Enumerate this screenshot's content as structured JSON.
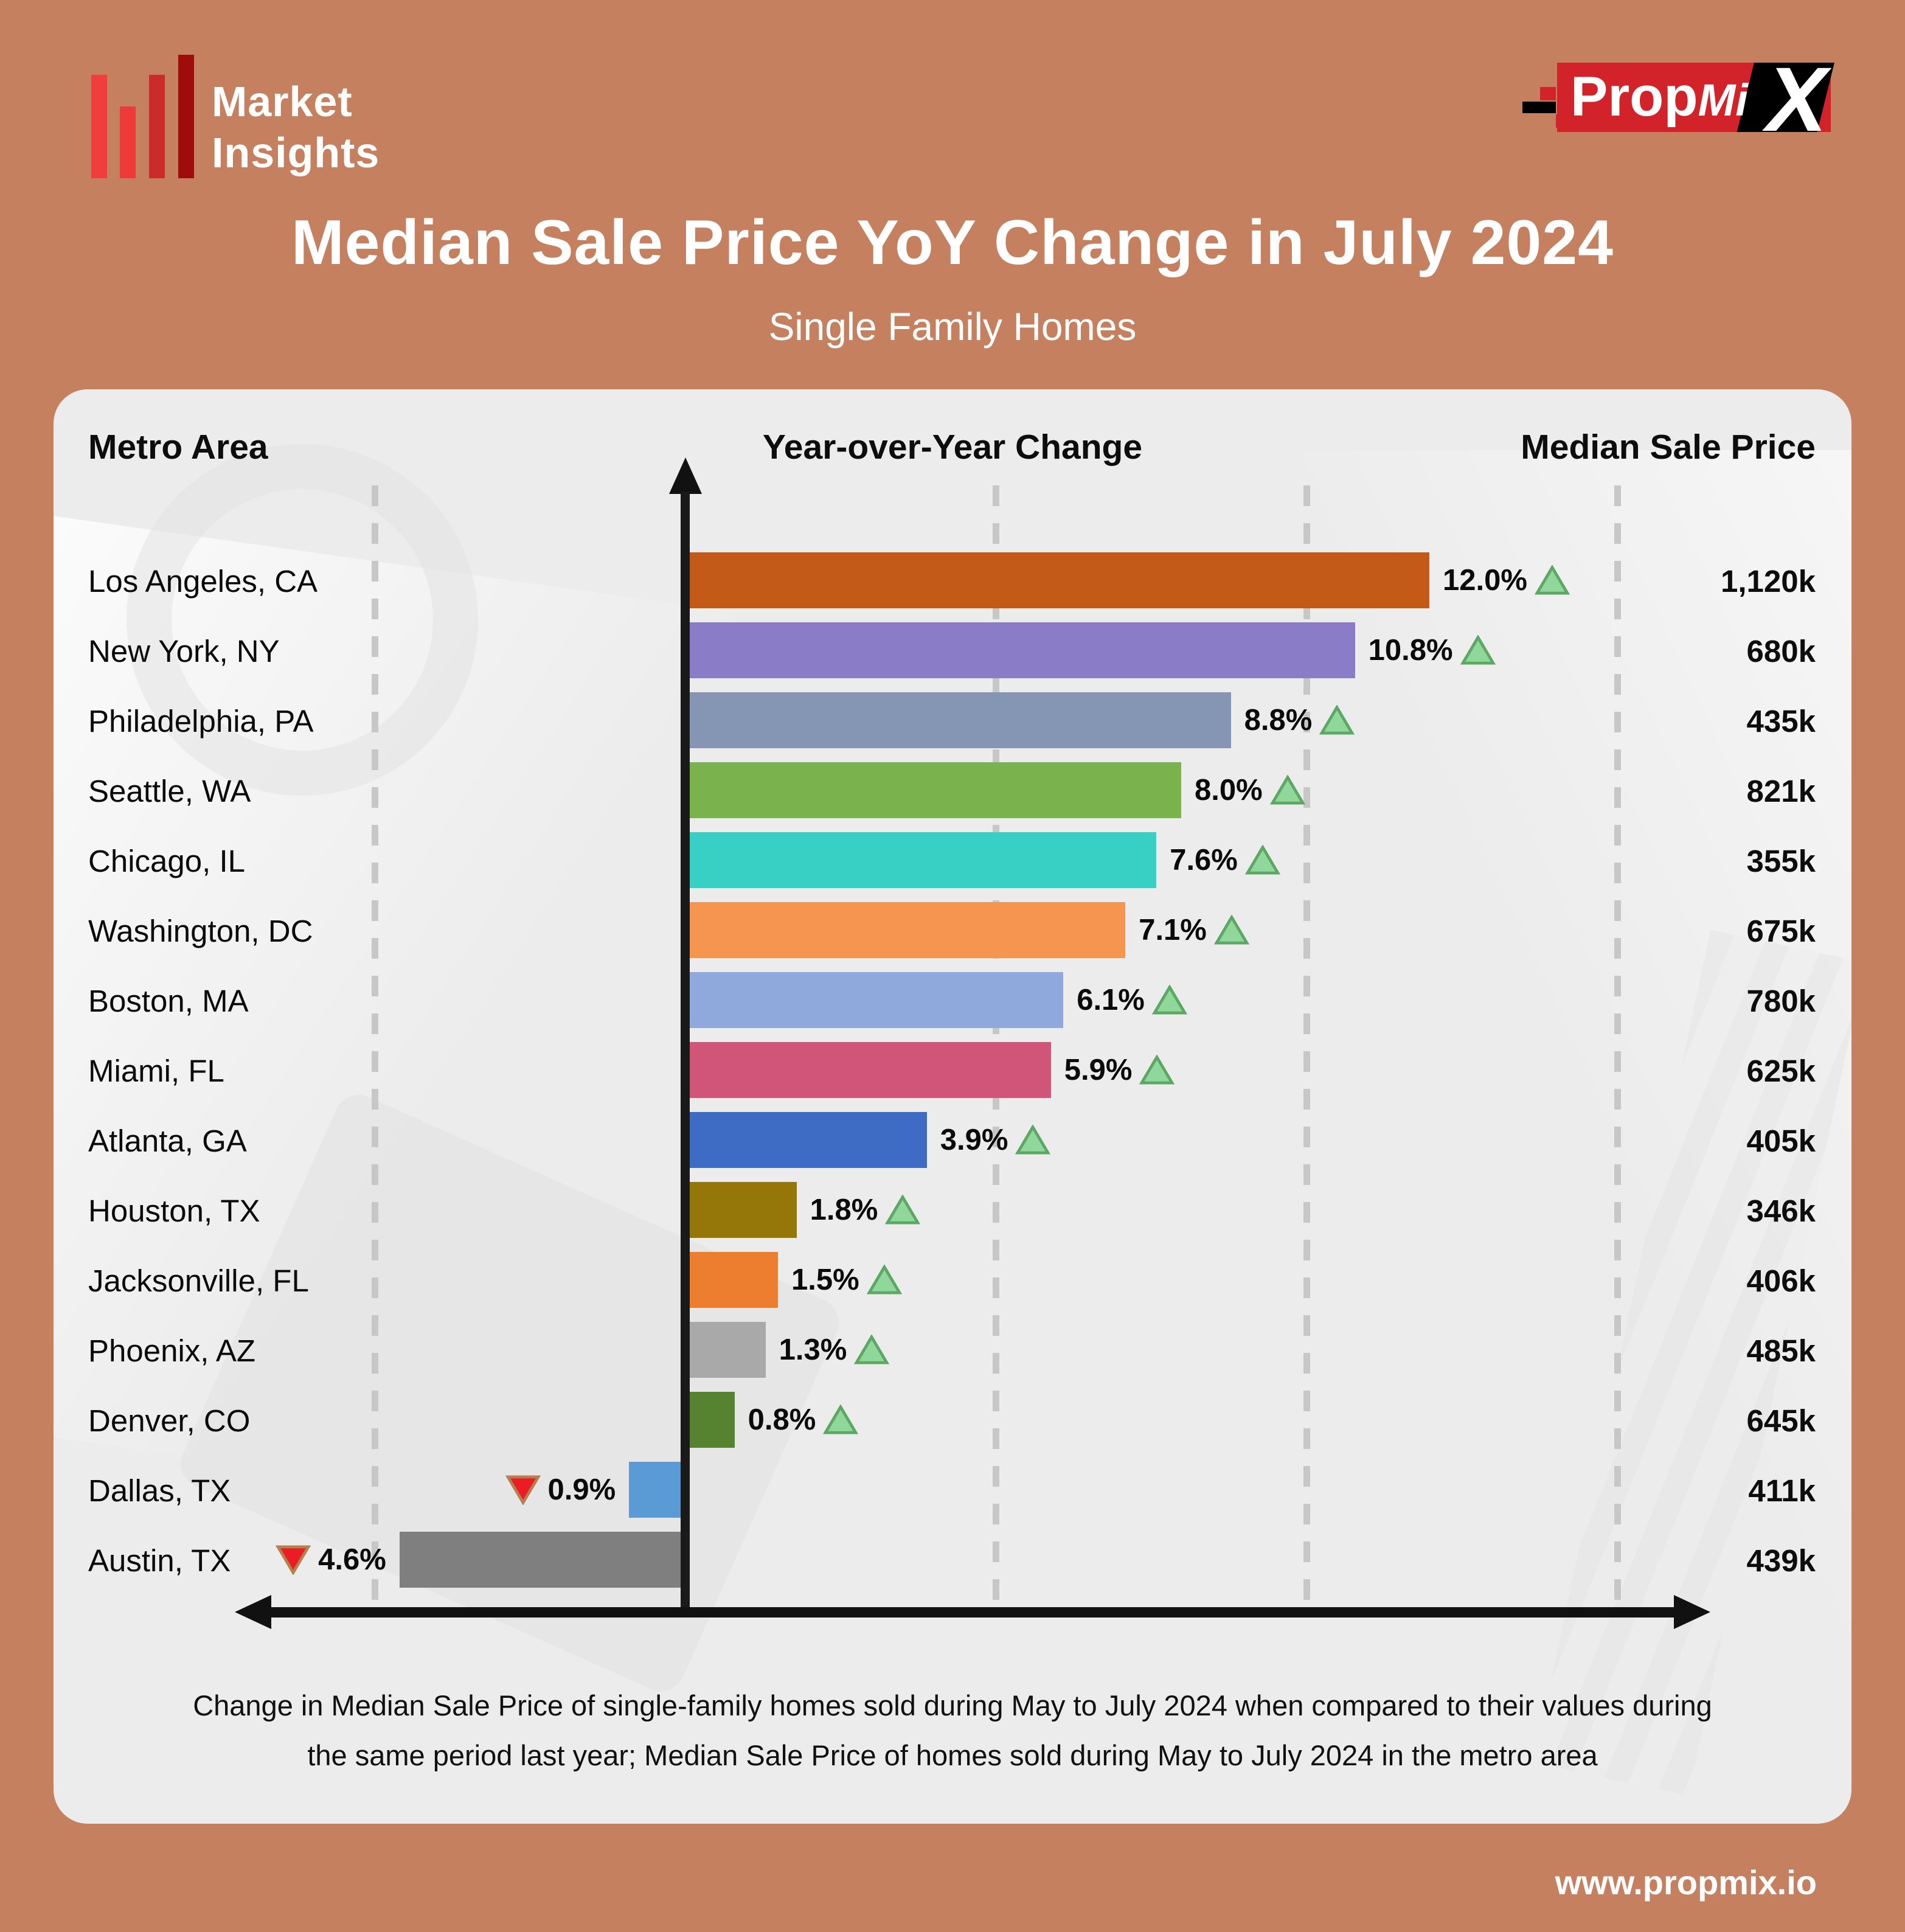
{
  "brand": {
    "line1": "Market",
    "line2": "Insights"
  },
  "propmix_logo": {
    "prop": "Prop",
    "mi": "Mi",
    "x": "X"
  },
  "title": "Median Sale Price YoY Change in July 2024",
  "subtitle": "Single Family Homes",
  "columns": {
    "metro": "Metro Area",
    "yoy": "Year-over-Year Change",
    "price": "Median Sale Price"
  },
  "footnote": {
    "line1": "Change in Median Sale Price of single-family homes sold during May to July 2024 when compared to their values during",
    "line2": "the same period last year; Median Sale Price of homes sold during May to July 2024 in the metro area"
  },
  "website": "www.propmix.io",
  "colors": {
    "page_background": "#c5805f",
    "card_background": "#ececec",
    "up_triangle_fill": "#8fd79b",
    "up_triangle_stroke": "#5ca763",
    "down_triangle_fill": "#ec1c24",
    "down_triangle_stroke": "#b5804f",
    "brand_reds": [
      "#f23d3d",
      "#ef3a3a",
      "#cc2b2b",
      "#9f0c0c"
    ],
    "propmix_red": "#d2232a"
  },
  "chart_data": {
    "type": "bar",
    "orientation": "horizontal",
    "title": "Median Sale Price YoY Change in July 2024",
    "subtitle": "Single Family Homes",
    "xlabel": "Year-over-Year Change",
    "xlim": [
      -5,
      15
    ],
    "gridlines_pct": [
      -5,
      5,
      10,
      15
    ],
    "zero_axis": true,
    "categories": [
      "Los Angeles, CA",
      "New York, NY",
      "Philadelphia, PA",
      "Seattle, WA",
      "Chicago, IL",
      "Washington, DC",
      "Boston, MA",
      "Miami, FL",
      "Atlanta, GA",
      "Houston, TX",
      "Jacksonville, FL",
      "Phoenix, AZ",
      "Denver, CO",
      "Dallas, TX",
      "Austin, TX"
    ],
    "series": [
      {
        "name": "Year-over-Year Change (%)",
        "values": [
          12.0,
          10.8,
          8.8,
          8.0,
          7.6,
          7.1,
          6.1,
          5.9,
          3.9,
          1.8,
          1.5,
          1.3,
          0.8,
          -0.9,
          -4.6
        ]
      },
      {
        "name": "Median Sale Price",
        "values": [
          "1,120k",
          "680k",
          "435k",
          "821k",
          "355k",
          "675k",
          "780k",
          "625k",
          "405k",
          "346k",
          "406k",
          "485k",
          "645k",
          "411k",
          "439k"
        ]
      }
    ],
    "rows": [
      {
        "metro": "Los Angeles, CA",
        "value": 12.0,
        "label": "12.0%",
        "direction": "up",
        "price": "1,120k",
        "color": "#c45a17"
      },
      {
        "metro": "New York, NY",
        "value": 10.8,
        "label": "10.8%",
        "direction": "up",
        "price": "680k",
        "color": "#8b7cc8"
      },
      {
        "metro": "Philadelphia, PA",
        "value": 8.8,
        "label": "8.8%",
        "direction": "up",
        "price": "435k",
        "color": "#8496b4"
      },
      {
        "metro": "Seattle, WA",
        "value": 8.0,
        "label": "8.0%",
        "direction": "up",
        "price": "821k",
        "color": "#7ab24e"
      },
      {
        "metro": "Chicago, IL",
        "value": 7.6,
        "label": "7.6%",
        "direction": "up",
        "price": "355k",
        "color": "#38d0c4"
      },
      {
        "metro": "Washington, DC",
        "value": 7.1,
        "label": "7.1%",
        "direction": "up",
        "price": "675k",
        "color": "#f5954f"
      },
      {
        "metro": "Boston, MA",
        "value": 6.1,
        "label": "6.1%",
        "direction": "up",
        "price": "780k",
        "color": "#8fa9dd"
      },
      {
        "metro": "Miami, FL",
        "value": 5.9,
        "label": "5.9%",
        "direction": "up",
        "price": "625k",
        "color": "#d05578"
      },
      {
        "metro": "Atlanta, GA",
        "value": 3.9,
        "label": "3.9%",
        "direction": "up",
        "price": "405k",
        "color": "#3e6cc5"
      },
      {
        "metro": "Houston, TX",
        "value": 1.8,
        "label": "1.8%",
        "direction": "up",
        "price": "346k",
        "color": "#957608"
      },
      {
        "metro": "Jacksonville, FL",
        "value": 1.5,
        "label": "1.5%",
        "direction": "up",
        "price": "406k",
        "color": "#ee7e2f"
      },
      {
        "metro": "Phoenix, AZ",
        "value": 1.3,
        "label": "1.3%",
        "direction": "up",
        "price": "485k",
        "color": "#a9a9a9"
      },
      {
        "metro": "Denver, CO",
        "value": 0.8,
        "label": "0.8%",
        "direction": "up",
        "price": "645k",
        "color": "#55832f"
      },
      {
        "metro": "Dallas, TX",
        "value": -0.9,
        "label": "0.9%",
        "direction": "down",
        "price": "411k",
        "color": "#5b9bd5"
      },
      {
        "metro": "Austin, TX",
        "value": -4.6,
        "label": "4.6%",
        "direction": "down",
        "price": "439k",
        "color": "#7f7f7f"
      }
    ]
  }
}
